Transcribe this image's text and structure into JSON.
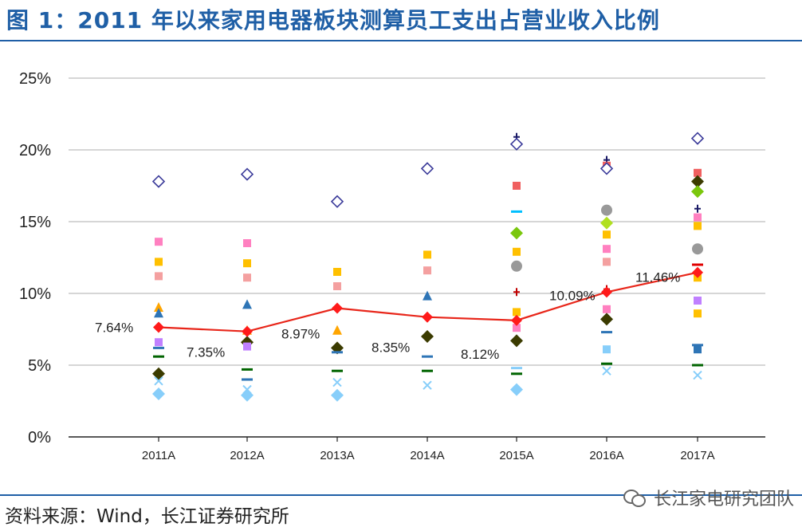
{
  "title": "图 1：2011 年以来家用电器板块测算员工支出占营业收入比例",
  "source": "资料来源：Wind，长江证券研究所",
  "watermark": "长江家电研究团队",
  "colors": {
    "title": "#1f5fa6",
    "average_line": "#e8261a",
    "average_marker": "#ff1a1a",
    "grid": "#c8c8c8"
  },
  "chart_data": {
    "type": "scatter",
    "title": "",
    "xlabel": "",
    "ylabel": "",
    "categories": [
      "2011A",
      "2012A",
      "2013A",
      "2014A",
      "2015A",
      "2016A",
      "2017A"
    ],
    "ylim": [
      0,
      25
    ],
    "yticks": [
      "0%",
      "5%",
      "10%",
      "15%",
      "20%",
      "25%"
    ],
    "grid": true,
    "line_series": {
      "values": [
        7.64,
        7.35,
        8.97,
        8.35,
        8.12,
        10.09,
        11.46
      ],
      "labels": [
        "7.64%",
        "7.35%",
        "8.97%",
        "8.35%",
        "8.12%",
        "10.09%",
        "11.46%"
      ],
      "color": "#e8261a"
    },
    "scatter_points": [
      {
        "c": 0,
        "v": 17.8,
        "shape": "diamond-open",
        "color": "#3a3a9a"
      },
      {
        "c": 0,
        "v": 13.6,
        "shape": "square",
        "color": "#ff80c0"
      },
      {
        "c": 0,
        "v": 12.2,
        "shape": "square",
        "color": "#ffc000"
      },
      {
        "c": 0,
        "v": 11.2,
        "shape": "square",
        "color": "#f4a0a0"
      },
      {
        "c": 0,
        "v": 9.0,
        "shape": "triangle",
        "color": "#ffa500"
      },
      {
        "c": 0,
        "v": 8.6,
        "shape": "triangle",
        "color": "#2e75b6"
      },
      {
        "c": 0,
        "v": 6.6,
        "shape": "square",
        "color": "#c080ff"
      },
      {
        "c": 0,
        "v": 6.2,
        "shape": "dash",
        "color": "#2e75b6"
      },
      {
        "c": 0,
        "v": 5.6,
        "shape": "dash",
        "color": "#006400"
      },
      {
        "c": 0,
        "v": 4.4,
        "shape": "diamond",
        "color": "#3b3b00"
      },
      {
        "c": 0,
        "v": 3.9,
        "shape": "x",
        "color": "#87cefa"
      },
      {
        "c": 0,
        "v": 3.0,
        "shape": "diamond",
        "color": "#87cefa"
      },
      {
        "c": 1,
        "v": 18.3,
        "shape": "diamond-open",
        "color": "#3a3a9a"
      },
      {
        "c": 1,
        "v": 13.5,
        "shape": "square",
        "color": "#ff80c0"
      },
      {
        "c": 1,
        "v": 12.1,
        "shape": "square",
        "color": "#ffc000"
      },
      {
        "c": 1,
        "v": 11.1,
        "shape": "square",
        "color": "#f4a0a0"
      },
      {
        "c": 1,
        "v": 9.2,
        "shape": "triangle",
        "color": "#2e75b6"
      },
      {
        "c": 1,
        "v": 7.4,
        "shape": "triangle",
        "color": "#ffa500"
      },
      {
        "c": 1,
        "v": 6.6,
        "shape": "diamond",
        "color": "#3b3b00"
      },
      {
        "c": 1,
        "v": 6.3,
        "shape": "square",
        "color": "#c080ff"
      },
      {
        "c": 1,
        "v": 4.7,
        "shape": "dash",
        "color": "#006400"
      },
      {
        "c": 1,
        "v": 4.0,
        "shape": "dash",
        "color": "#2e75b6"
      },
      {
        "c": 1,
        "v": 3.3,
        "shape": "x",
        "color": "#87cefa"
      },
      {
        "c": 1,
        "v": 2.9,
        "shape": "diamond",
        "color": "#87cefa"
      },
      {
        "c": 2,
        "v": 16.4,
        "shape": "diamond-open",
        "color": "#3a3a9a"
      },
      {
        "c": 2,
        "v": 11.5,
        "shape": "square",
        "color": "#ffc000"
      },
      {
        "c": 2,
        "v": 10.5,
        "shape": "square",
        "color": "#f4a0a0"
      },
      {
        "c": 2,
        "v": 7.4,
        "shape": "triangle",
        "color": "#ffa500"
      },
      {
        "c": 2,
        "v": 6.2,
        "shape": "diamond",
        "color": "#3b3b00"
      },
      {
        "c": 2,
        "v": 5.9,
        "shape": "dash",
        "color": "#2e75b6"
      },
      {
        "c": 2,
        "v": 4.6,
        "shape": "dash",
        "color": "#006400"
      },
      {
        "c": 2,
        "v": 3.8,
        "shape": "x",
        "color": "#87cefa"
      },
      {
        "c": 2,
        "v": 2.9,
        "shape": "diamond",
        "color": "#87cefa"
      },
      {
        "c": 3,
        "v": 18.7,
        "shape": "diamond-open",
        "color": "#3a3a9a"
      },
      {
        "c": 3,
        "v": 12.7,
        "shape": "square",
        "color": "#ffc000"
      },
      {
        "c": 3,
        "v": 11.6,
        "shape": "square",
        "color": "#f4a0a0"
      },
      {
        "c": 3,
        "v": 9.8,
        "shape": "triangle",
        "color": "#2e75b6"
      },
      {
        "c": 3,
        "v": 7.0,
        "shape": "diamond",
        "color": "#3b3b00"
      },
      {
        "c": 3,
        "v": 5.6,
        "shape": "dash",
        "color": "#2e75b6"
      },
      {
        "c": 3,
        "v": 4.6,
        "shape": "dash",
        "color": "#006400"
      },
      {
        "c": 3,
        "v": 3.6,
        "shape": "x",
        "color": "#87cefa"
      },
      {
        "c": 4,
        "v": 20.9,
        "shape": "cross",
        "color": "#1a1a66"
      },
      {
        "c": 4,
        "v": 20.4,
        "shape": "diamond-open",
        "color": "#3a3a9a"
      },
      {
        "c": 4,
        "v": 17.5,
        "shape": "square",
        "color": "#f06060"
      },
      {
        "c": 4,
        "v": 15.7,
        "shape": "dash",
        "color": "#00bfff"
      },
      {
        "c": 4,
        "v": 14.2,
        "shape": "diamond",
        "color": "#7ac70c"
      },
      {
        "c": 4,
        "v": 12.9,
        "shape": "square",
        "color": "#ffc000"
      },
      {
        "c": 4,
        "v": 11.9,
        "shape": "circle",
        "color": "#999999"
      },
      {
        "c": 4,
        "v": 10.1,
        "shape": "cross",
        "color": "#c00000"
      },
      {
        "c": 4,
        "v": 8.7,
        "shape": "square",
        "color": "#ffc000"
      },
      {
        "c": 4,
        "v": 7.6,
        "shape": "square",
        "color": "#ff80c0"
      },
      {
        "c": 4,
        "v": 6.7,
        "shape": "diamond",
        "color": "#3b3b00"
      },
      {
        "c": 4,
        "v": 4.8,
        "shape": "dash",
        "color": "#87cefa"
      },
      {
        "c": 4,
        "v": 4.4,
        "shape": "dash",
        "color": "#006400"
      },
      {
        "c": 4,
        "v": 3.3,
        "shape": "diamond",
        "color": "#87cefa"
      },
      {
        "c": 5,
        "v": 19.3,
        "shape": "cross",
        "color": "#1a1a66"
      },
      {
        "c": 5,
        "v": 18.9,
        "shape": "square",
        "color": "#f06060"
      },
      {
        "c": 5,
        "v": 18.7,
        "shape": "diamond-open",
        "color": "#3a3a9a"
      },
      {
        "c": 5,
        "v": 15.8,
        "shape": "circle",
        "color": "#999999"
      },
      {
        "c": 5,
        "v": 14.9,
        "shape": "diamond",
        "color": "#b0e020"
      },
      {
        "c": 5,
        "v": 14.1,
        "shape": "square",
        "color": "#ffc000"
      },
      {
        "c": 5,
        "v": 13.1,
        "shape": "square",
        "color": "#ff80c0"
      },
      {
        "c": 5,
        "v": 12.2,
        "shape": "square",
        "color": "#f4a0a0"
      },
      {
        "c": 5,
        "v": 10.3,
        "shape": "cross",
        "color": "#c00000"
      },
      {
        "c": 5,
        "v": 8.9,
        "shape": "square",
        "color": "#ff80c0"
      },
      {
        "c": 5,
        "v": 8.2,
        "shape": "diamond",
        "color": "#3b3b00"
      },
      {
        "c": 5,
        "v": 7.3,
        "shape": "dash",
        "color": "#2e75b6"
      },
      {
        "c": 5,
        "v": 6.1,
        "shape": "square",
        "color": "#87cefa"
      },
      {
        "c": 5,
        "v": 5.1,
        "shape": "dash",
        "color": "#006400"
      },
      {
        "c": 5,
        "v": 4.6,
        "shape": "x",
        "color": "#87cefa"
      },
      {
        "c": 6,
        "v": 20.8,
        "shape": "diamond-open",
        "color": "#3a3a9a"
      },
      {
        "c": 6,
        "v": 18.4,
        "shape": "square",
        "color": "#f06060"
      },
      {
        "c": 6,
        "v": 17.8,
        "shape": "diamond",
        "color": "#3b3b00"
      },
      {
        "c": 6,
        "v": 17.1,
        "shape": "diamond",
        "color": "#7ac70c"
      },
      {
        "c": 6,
        "v": 15.9,
        "shape": "cross",
        "color": "#1a1a66"
      },
      {
        "c": 6,
        "v": 15.3,
        "shape": "square",
        "color": "#ff80c0"
      },
      {
        "c": 6,
        "v": 14.7,
        "shape": "square",
        "color": "#ffc000"
      },
      {
        "c": 6,
        "v": 13.1,
        "shape": "circle",
        "color": "#999999"
      },
      {
        "c": 6,
        "v": 12.0,
        "shape": "dash",
        "color": "#e00000"
      },
      {
        "c": 6,
        "v": 11.1,
        "shape": "square",
        "color": "#ffc000"
      },
      {
        "c": 6,
        "v": 9.5,
        "shape": "square",
        "color": "#c080ff"
      },
      {
        "c": 6,
        "v": 8.6,
        "shape": "square",
        "color": "#ffc000"
      },
      {
        "c": 6,
        "v": 6.4,
        "shape": "dash",
        "color": "#2e75b6"
      },
      {
        "c": 6,
        "v": 6.1,
        "shape": "square",
        "color": "#2e75b6"
      },
      {
        "c": 6,
        "v": 5.0,
        "shape": "dash",
        "color": "#006400"
      },
      {
        "c": 6,
        "v": 4.3,
        "shape": "x",
        "color": "#87cefa"
      }
    ]
  }
}
